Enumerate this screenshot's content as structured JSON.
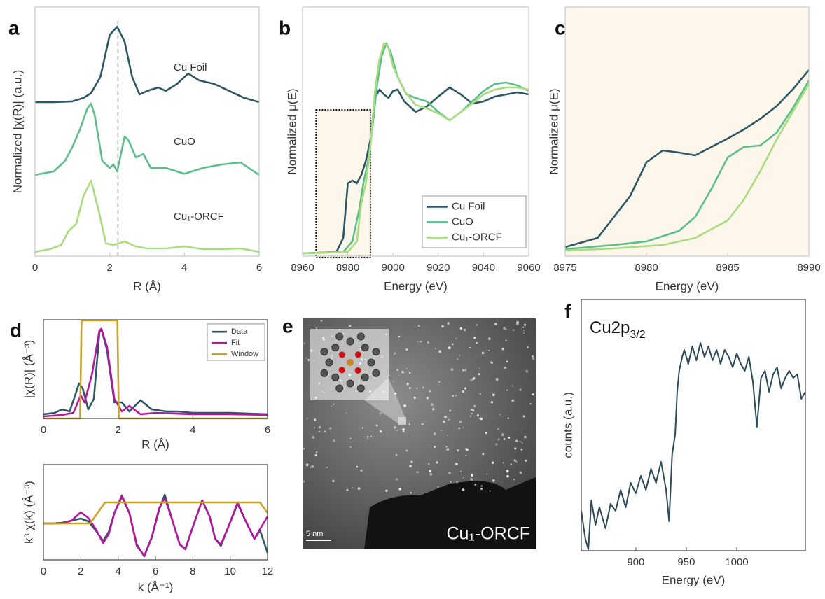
{
  "chart_data": [
    {
      "type": "line",
      "panel": "a",
      "xlabel": "R (Å)",
      "ylabel": "Normalized |χ(R)| (a.u.)",
      "xlim": [
        0,
        6
      ],
      "xticks": [
        0,
        2,
        4,
        6
      ],
      "ylim": [
        0,
        1
      ],
      "reference_line": 2.22,
      "series": [
        {
          "name": "Cu Foil",
          "color": "#2d5767",
          "x": [
            0,
            0.5,
            1,
            1.3,
            1.5,
            1.75,
            2.0,
            2.2,
            2.4,
            2.6,
            2.8,
            3.0,
            3.3,
            3.5,
            3.8,
            4.1,
            4.4,
            4.8,
            5.2,
            5.6,
            6
          ],
          "values": [
            0.618,
            0.618,
            0.621,
            0.635,
            0.654,
            0.719,
            0.888,
            0.921,
            0.86,
            0.719,
            0.649,
            0.663,
            0.677,
            0.663,
            0.691,
            0.733,
            0.705,
            0.691,
            0.663,
            0.635,
            0.618
          ]
        },
        {
          "name": "CuO",
          "color": "#5cbf8a",
          "x": [
            0,
            0.5,
            0.8,
            1.0,
            1.2,
            1.4,
            1.5,
            1.6,
            1.8,
            2.0,
            2.1,
            2.2,
            2.4,
            2.5,
            2.7,
            2.9,
            3.1,
            3.5,
            4,
            4.5,
            5,
            5.5,
            6
          ],
          "values": [
            0.326,
            0.34,
            0.382,
            0.438,
            0.508,
            0.593,
            0.612,
            0.565,
            0.382,
            0.354,
            0.368,
            0.34,
            0.48,
            0.466,
            0.396,
            0.41,
            0.354,
            0.354,
            0.331,
            0.354,
            0.368,
            0.376,
            0.326
          ]
        },
        {
          "name": "Cu₁-ORCF",
          "color": "#a8dc7e",
          "x": [
            0,
            0.4,
            0.7,
            0.9,
            1.1,
            1.3,
            1.5,
            1.7,
            1.9,
            2.1,
            2.4,
            2.7,
            3,
            3.5,
            4,
            4.5,
            5,
            5.5,
            6
          ],
          "values": [
            0.017,
            0.028,
            0.045,
            0.101,
            0.129,
            0.242,
            0.303,
            0.185,
            0.051,
            0.045,
            0.059,
            0.039,
            0.031,
            0.031,
            0.039,
            0.028,
            0.028,
            0.031,
            0.017
          ]
        }
      ]
    },
    {
      "type": "line",
      "panel": "b",
      "xlabel": "Energy (eV)",
      "ylabel": "Normalized μ(E)",
      "xlim": [
        8960,
        9060
      ],
      "xticks": [
        8960,
        8980,
        9000,
        9020,
        9040,
        9060
      ],
      "ylim": [
        0,
        3.56
      ],
      "legend": "lower right",
      "highlight": {
        "x": [
          8966,
          8990
        ],
        "y": [
          0,
          2.09
        ],
        "color": "#fcf7ea"
      },
      "series": [
        {
          "name": "Cu Foil",
          "color": "#2d5767",
          "x": [
            8960,
            8975,
            8978,
            8980,
            8982,
            8984,
            8986,
            8988,
            8990,
            8992,
            8994,
            8996,
            8998,
            9000,
            9002,
            9005,
            9010,
            9015,
            9020,
            9025,
            9030,
            9035,
            9040,
            9045,
            9050,
            9055,
            9060
          ],
          "values": [
            0.04,
            0.06,
            0.26,
            1.04,
            1.08,
            1.04,
            1.16,
            1.36,
            1.66,
            2.26,
            2.38,
            2.31,
            2.26,
            2.36,
            2.38,
            2.21,
            2.06,
            2.14,
            2.28,
            2.41,
            2.31,
            2.18,
            2.21,
            2.28,
            2.31,
            2.34,
            2.31
          ]
        },
        {
          "name": "CuO",
          "color": "#5cbf8a",
          "x": [
            8960,
            8978,
            8982,
            8985,
            8987,
            8989,
            8991,
            8993,
            8995,
            8997,
            8999,
            9002,
            9006,
            9010,
            9015,
            9020,
            9025,
            9030,
            9035,
            9040,
            9045,
            9050,
            9055,
            9060
          ],
          "values": [
            0.04,
            0.06,
            0.21,
            0.66,
            1.06,
            1.36,
            1.86,
            2.46,
            2.86,
            3.04,
            2.91,
            2.56,
            2.31,
            2.26,
            2.21,
            2.06,
            1.94,
            2.06,
            2.21,
            2.36,
            2.46,
            2.48,
            2.44,
            2.36
          ]
        },
        {
          "name": "Cu₁-ORCF",
          "color": "#a8dc7e",
          "x": [
            8960,
            8980,
            8984,
            8986,
            8988,
            8990,
            8992,
            8994,
            8996,
            8998,
            9000,
            9005,
            9010,
            9015,
            9020,
            9025,
            9030,
            9035,
            9040,
            9045,
            9050,
            9055,
            9060
          ],
          "values": [
            0.04,
            0.06,
            0.21,
            0.76,
            1.04,
            1.56,
            2.36,
            2.81,
            3.04,
            2.98,
            2.71,
            2.36,
            2.16,
            2.11,
            2.04,
            1.94,
            2.06,
            2.18,
            2.31,
            2.38,
            2.41,
            2.41,
            2.38
          ]
        }
      ]
    },
    {
      "type": "line",
      "panel": "c",
      "xlabel": "Energy (eV)",
      "ylabel": "Normalized μ(E)",
      "xlim": [
        8975,
        8990
      ],
      "xticks": [
        8975,
        8980,
        8985,
        8990
      ],
      "ylim": [
        0,
        3.56
      ],
      "background": "#fcf7ea",
      "series": [
        {
          "name": "Cu Foil",
          "color": "#2d5767",
          "x": [
            8975,
            8977,
            8979,
            8980,
            8981,
            8982,
            8983,
            8984,
            8985,
            8986,
            8987,
            8988,
            8989,
            8990
          ],
          "values": [
            0.13,
            0.26,
            0.86,
            1.34,
            1.51,
            1.48,
            1.44,
            1.56,
            1.68,
            1.81,
            1.96,
            2.14,
            2.38,
            2.66
          ]
        },
        {
          "name": "CuO",
          "color": "#5cbf8a",
          "x": [
            8975,
            8978,
            8980,
            8982,
            8983,
            8984,
            8985,
            8986,
            8987,
            8988,
            8989,
            8990
          ],
          "values": [
            0.1,
            0.16,
            0.21,
            0.36,
            0.56,
            0.96,
            1.41,
            1.56,
            1.58,
            1.76,
            2.11,
            2.51
          ]
        },
        {
          "name": "Cu₁-ORCF",
          "color": "#a8dc7e",
          "x": [
            8975,
            8978,
            8981,
            8983,
            8985,
            8986,
            8987,
            8988,
            8989,
            8990
          ],
          "values": [
            0.08,
            0.11,
            0.16,
            0.26,
            0.51,
            0.81,
            1.21,
            1.66,
            2.06,
            2.46
          ]
        }
      ]
    },
    {
      "type": "line",
      "panel": "d",
      "xlabel": "R (Å)",
      "ylabel": "|χ(R)| (Å⁻³)",
      "xlim": [
        0,
        6
      ],
      "xticks": [
        0,
        2,
        4,
        6
      ],
      "ylim": [
        0,
        1.41
      ],
      "legend": "upper right",
      "series": [
        {
          "name": "Data",
          "color": "#2d5767",
          "x": [
            0,
            0.3,
            0.5,
            0.7,
            0.85,
            0.95,
            1.05,
            1.2,
            1.35,
            1.5,
            1.55,
            1.7,
            1.9,
            2.1,
            2.3,
            2.6,
            2.9,
            3.3,
            3.6,
            4,
            5,
            6
          ],
          "values": [
            0.06,
            0.08,
            0.13,
            0.1,
            0.33,
            0.5,
            0.43,
            0.13,
            0.28,
            1.23,
            1.28,
            0.98,
            0.23,
            0.23,
            0.1,
            0.26,
            0.13,
            0.1,
            0.1,
            0.08,
            0.08,
            0.06
          ]
        },
        {
          "name": "Fit",
          "color": "#b4169e",
          "x": [
            0,
            0.5,
            0.8,
            1.0,
            1.1,
            1.3,
            1.5,
            1.55,
            1.7,
            1.9,
            2.1,
            2.3,
            2.6,
            3,
            4,
            5,
            6
          ],
          "values": [
            0.03,
            0.05,
            0.08,
            0.33,
            0.23,
            0.63,
            1.26,
            1.28,
            1.03,
            0.28,
            0.1,
            0.18,
            0.06,
            0.08,
            0.06,
            0.06,
            0.05
          ]
        },
        {
          "name": "Window",
          "color": "#c9a227",
          "x": [
            0,
            0.98,
            1.02,
            1.98,
            2.02,
            6
          ],
          "values": [
            0,
            0,
            1.4,
            1.4,
            0,
            0
          ]
        }
      ]
    },
    {
      "type": "line",
      "xlabel": "k (Å⁻¹)",
      "ylabel": "k³ χ(k) (Å⁻³)",
      "xlim": [
        0,
        12
      ],
      "xticks": [
        0,
        2,
        4,
        6,
        8,
        10,
        12
      ],
      "ylim": [
        -0.52,
        0.84
      ],
      "series": [
        {
          "name": "Data",
          "color": "#2d5767",
          "x": [
            0,
            0.5,
            1,
            1.5,
            2,
            2.4,
            2.8,
            3.2,
            3.5,
            3.8,
            4.2,
            4.6,
            5.0,
            5.4,
            5.8,
            6.2,
            6.5,
            6.9,
            7.3,
            7.6,
            8.0,
            8.5,
            8.9,
            9.2,
            9.5,
            9.9,
            10.4,
            10.8,
            11.3,
            11.6,
            12
          ],
          "values": [
            0.0,
            0.0,
            0.01,
            0.04,
            0.07,
            0.03,
            -0.1,
            -0.25,
            -0.12,
            0.15,
            0.38,
            0.15,
            -0.3,
            -0.47,
            -0.2,
            0.2,
            0.41,
            0.05,
            -0.3,
            -0.37,
            -0.05,
            0.33,
            0.1,
            -0.22,
            -0.32,
            -0.05,
            0.28,
            0.05,
            -0.22,
            -0.1,
            -0.42
          ]
        },
        {
          "name": "Fit",
          "color": "#b4169e",
          "x": [
            0,
            1,
            1.5,
            2,
            2.4,
            2.8,
            3.2,
            3.5,
            3.8,
            4.2,
            4.6,
            5.0,
            5.4,
            5.8,
            6.2,
            6.5,
            6.9,
            7.3,
            7.6,
            8.0,
            8.5,
            8.9,
            9.2,
            9.5,
            9.9,
            10.4,
            10.8,
            11.3,
            11.6,
            12
          ],
          "values": [
            0.0,
            0.0,
            0.04,
            0.16,
            0.08,
            -0.08,
            -0.28,
            -0.15,
            0.15,
            0.4,
            0.15,
            -0.32,
            -0.46,
            -0.2,
            0.22,
            0.36,
            0.05,
            -0.3,
            -0.36,
            -0.05,
            0.33,
            0.1,
            -0.22,
            -0.3,
            -0.05,
            0.3,
            0.05,
            -0.22,
            -0.08,
            0.1
          ]
        },
        {
          "name": "Window",
          "color": "#c9a227",
          "x": [
            0,
            2.5,
            3.3,
            11.6,
            12
          ],
          "values": [
            0,
            0,
            0.3,
            0.3,
            0.15
          ]
        }
      ]
    },
    {
      "type": "image",
      "panel": "e",
      "label": "Cu₁-ORCF",
      "scale_bar": "5 nm"
    },
    {
      "type": "line",
      "panel": "f",
      "xlabel": "Energy (eV)",
      "ylabel": "counts (a.u.)",
      "annotation": {
        "main": "Cu2p",
        "sub": "3/2"
      },
      "xlim": [
        846,
        1068
      ],
      "xticks": [
        900,
        950,
        1000
      ],
      "ylim": [
        0,
        3.59
      ],
      "series": [
        {
          "name": "Cu2p",
          "color": "#2c4a5a",
          "x": [
            846,
            850,
            853,
            856,
            860,
            864,
            870,
            875,
            880,
            885,
            890,
            895,
            900,
            905,
            910,
            915,
            920,
            925,
            930,
            933,
            936,
            939,
            941,
            943,
            946,
            948,
            952,
            956,
            960,
            964,
            968,
            972,
            976,
            980,
            984,
            988,
            992,
            996,
            1000,
            1004,
            1008,
            1012,
            1016,
            1020,
            1024,
            1028,
            1032,
            1036,
            1040,
            1044,
            1048,
            1052,
            1056,
            1060,
            1064,
            1068
          ],
          "values": [
            0.57,
            0.17,
            0.02,
            0.72,
            0.37,
            0.62,
            0.32,
            0.67,
            0.57,
            0.87,
            0.62,
            0.97,
            0.82,
            1.07,
            0.87,
            1.17,
            0.97,
            1.27,
            0.87,
            0.42,
            1.37,
            1.67,
            2.27,
            2.57,
            2.77,
            2.87,
            2.67,
            2.92,
            2.72,
            2.97,
            2.77,
            2.92,
            2.72,
            2.87,
            2.67,
            2.87,
            2.77,
            2.62,
            2.82,
            2.67,
            2.57,
            2.77,
            2.42,
            1.77,
            2.47,
            2.57,
            2.27,
            2.52,
            2.62,
            2.32,
            2.47,
            2.57,
            2.47,
            2.52,
            2.17,
            2.27
          ]
        }
      ]
    }
  ]
}
